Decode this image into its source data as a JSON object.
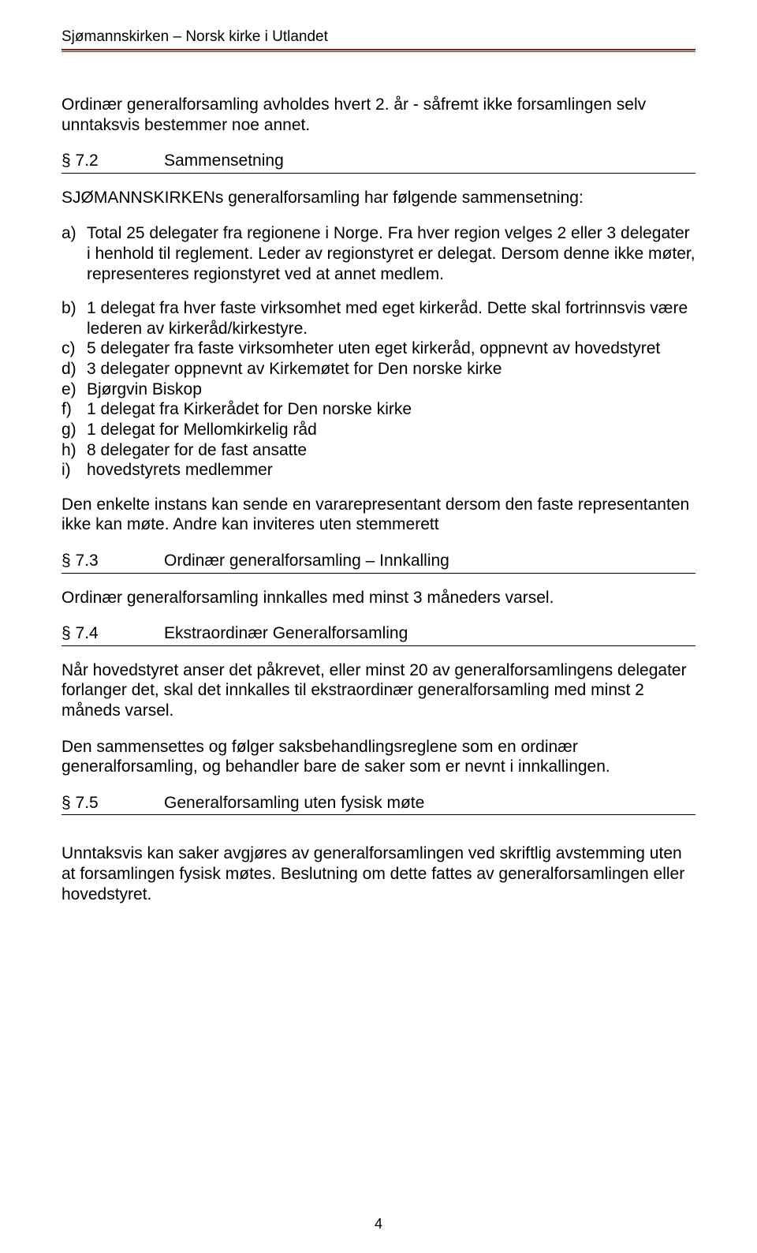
{
  "header": {
    "title": "Sjømannskirken – Norsk kirke i Utlandet"
  },
  "p1": "Ordinær generalforsamling avholdes hvert 2. år - såfremt ikke forsamlingen selv unntaksvis bestemmer noe annet.",
  "s72": {
    "num": "§ 7.2",
    "title": "Sammensetning"
  },
  "p2": "SJØMANNSKIRKENs generalforsamling har følgende sammensetning:",
  "a_marker": "a)",
  "a_text": "Total 25 delegater fra regionene i Norge. Fra hver region velges 2 eller 3 delegater i henhold til reglement. Leder av regionstyret er delegat. Dersom denne ikke møter, representeres regionstyret ved at annet medlem.",
  "b_marker": "b)",
  "b_text": "1 delegat fra hver faste virksomhet med eget kirkeråd. Dette skal fortrinnsvis være lederen av kirkeråd/kirkestyre.",
  "c_marker": "c)",
  "c_text": "5 delegater fra faste virksomheter uten eget kirkeråd, oppnevnt av hovedstyret",
  "d_marker": "d)",
  "d_text": "3 delegater oppnevnt av Kirkemøtet for Den norske kirke",
  "e_marker": "e)",
  "e_text": "Bjørgvin Biskop",
  "f_marker": "f)",
  "f_text": "1 delegat fra Kirkerådet for Den norske kirke",
  "g_marker": "g)",
  "g_text": "1 delegat for Mellomkirkelig råd",
  "h_marker": "h)",
  "h_text": "8 delegater for de fast ansatte",
  "i_marker": "i)",
  "i_text": "hovedstyrets medlemmer",
  "p3": "Den enkelte instans kan sende en vararepresentant dersom den faste representanten ikke kan møte. Andre kan inviteres uten stemmerett",
  "s73": {
    "num": "§ 7.3",
    "title": "Ordinær generalforsamling – Innkalling"
  },
  "p4": "Ordinær generalforsamling innkalles med minst 3 måneders varsel.",
  "s74": {
    "num": "§ 7.4",
    "title": "Ekstraordinær Generalforsamling"
  },
  "p5": "Når hovedstyret anser det påkrevet, eller minst 20 av generalforsamlingens delegater forlanger det, skal det innkalles til ekstraordinær generalforsamling med minst 2 måneds varsel.",
  "p6": "Den sammensettes og følger saksbehandlingsreglene som en ordinær generalforsamling, og behandler bare de saker som er nevnt i innkallingen.",
  "s75": {
    "num": "§ 7.5",
    "title": "Generalforsamling uten fysisk møte"
  },
  "p7": "Unntaksvis kan saker avgjøres av generalforsamlingen ved skriftlig avstemming uten at forsamlingen fysisk møtes.  Beslutning om dette fattes av generalforsamlingen eller hovedstyret.",
  "page_number": "4"
}
